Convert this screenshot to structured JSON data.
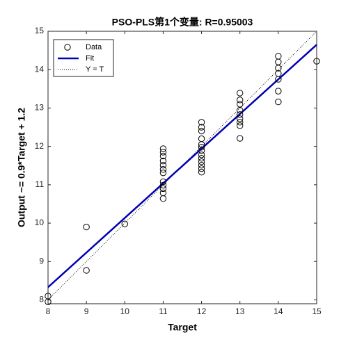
{
  "chart_data": {
    "type": "scatter",
    "title": "PSO-PLS第1个变量: R=0.95003",
    "xlabel": "Target",
    "ylabel": "Output ~= 0.9*Target + 1.2",
    "xlim": [
      8,
      15
    ],
    "ylim": [
      7.9,
      15
    ],
    "xticks": [
      8,
      9,
      10,
      11,
      12,
      13,
      14,
      15
    ],
    "yticks": [
      8,
      9,
      10,
      11,
      12,
      13,
      14,
      15
    ],
    "legend": "top-left",
    "series": [
      {
        "name": "Data",
        "kind": "marker",
        "color": "#000000",
        "x": [
          8,
          8,
          9,
          9,
          10,
          11,
          11,
          11,
          11,
          11,
          11,
          11,
          11,
          11,
          11,
          11,
          11,
          12,
          12,
          12,
          12,
          12,
          12,
          12,
          12,
          12,
          12,
          12,
          12,
          12,
          13,
          13,
          13,
          13,
          13,
          13,
          13,
          13,
          13,
          14,
          14,
          14,
          14,
          14,
          14,
          14,
          15
        ],
        "values": [
          8.1,
          7.95,
          9.9,
          8.77,
          9.98,
          11.94,
          11.85,
          11.75,
          11.62,
          11.51,
          11.4,
          11.31,
          11.08,
          10.99,
          10.9,
          10.79,
          10.64,
          12.63,
          12.5,
          12.4,
          12.2,
          12.05,
          11.98,
          11.89,
          11.78,
          11.69,
          11.6,
          11.51,
          11.42,
          11.33,
          13.39,
          13.21,
          13.1,
          12.94,
          12.83,
          12.72,
          12.63,
          12.54,
          12.21,
          14.35,
          14.2,
          14.04,
          13.9,
          13.75,
          13.44,
          13.16,
          14.22
        ]
      },
      {
        "name": "Fit",
        "kind": "line",
        "color": "#0000b4",
        "x": [
          8,
          15
        ],
        "values": [
          8.33,
          14.65
        ]
      },
      {
        "name": "Y = T",
        "kind": "dotted",
        "color": "#000000",
        "x": [
          8,
          15
        ],
        "values": [
          8,
          15
        ]
      }
    ]
  }
}
